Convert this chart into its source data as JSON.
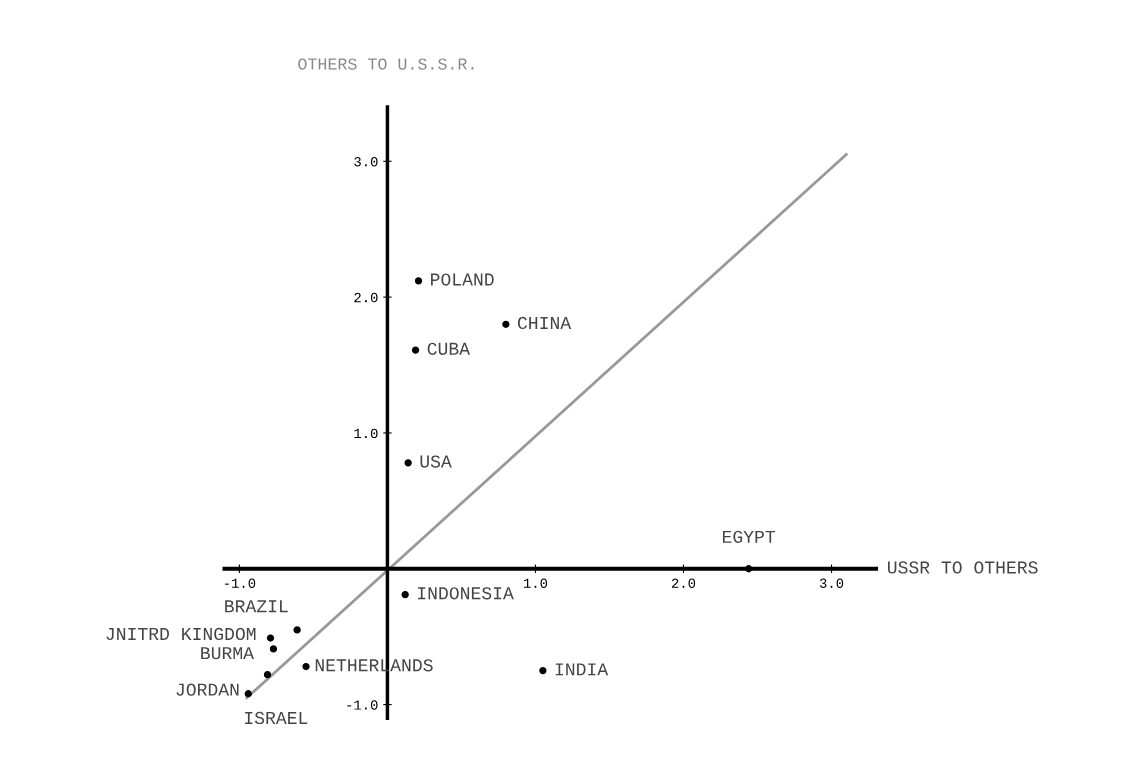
{
  "chart_data": {
    "type": "scatter",
    "xlabel": "USSR TO OTHERS",
    "ylabel": "OTHERS TO U.S.S.R.",
    "xlim": [
      -1.1,
      3.3
    ],
    "ylim": [
      -1.1,
      3.4
    ],
    "xticks": [
      {
        "value": -1.0,
        "label": "-1.0"
      },
      {
        "value": 1.0,
        "label": "1.0"
      },
      {
        "value": 2.0,
        "label": "2.0"
      },
      {
        "value": 3.0,
        "label": "3.0"
      }
    ],
    "yticks": [
      {
        "value": -1.0,
        "label": "-1.0"
      },
      {
        "value": 1.0,
        "label": "1.0"
      },
      {
        "value": 2.0,
        "label": "2.0"
      },
      {
        "value": 3.0,
        "label": "3.0"
      }
    ],
    "grid": false,
    "legend": false,
    "series": [
      {
        "marker": "circle",
        "color": "#000000",
        "x": [
          0.21,
          0.8,
          0.19,
          0.14,
          2.44,
          0.12,
          -0.61,
          -0.79,
          -0.77,
          -0.81,
          -0.94,
          -0.55,
          1.05
        ],
        "values": [
          2.12,
          1.8,
          1.61,
          0.78,
          0.0,
          -0.19,
          -0.45,
          -0.51,
          -0.59,
          -0.78,
          -0.92,
          -0.72,
          -0.75
        ]
      },
      {
        "type": "line",
        "color": "#999999",
        "x": [
          -0.95,
          3.1
        ],
        "values": [
          -0.95,
          3.05
        ]
      }
    ],
    "annotations": [
      {
        "text": "POLAND",
        "x": 0.21,
        "y": 2.12
      },
      {
        "text": "CHINA",
        "x": 0.8,
        "y": 1.8
      },
      {
        "text": "CUBA",
        "x": 0.19,
        "y": 1.61
      },
      {
        "text": "USA",
        "x": 0.14,
        "y": 0.78
      },
      {
        "text": "EGYPT",
        "x": 2.44,
        "y": 0.0
      },
      {
        "text": "INDONESIA",
        "x": 0.12,
        "y": -0.19
      },
      {
        "text": "BRAZIL",
        "x": -0.61,
        "y": -0.45
      },
      {
        "text": "JNITRD KINGDOM",
        "x": -0.79,
        "y": -0.51
      },
      {
        "text": "BURMA",
        "x": -0.77,
        "y": -0.59
      },
      {
        "text": "ISRAEL",
        "x": -0.81,
        "y": -0.78
      },
      {
        "text": "JORDAN",
        "x": -0.94,
        "y": -0.92
      },
      {
        "text": "NETHERLANDS",
        "x": -0.55,
        "y": -0.72
      },
      {
        "text": "INDIA",
        "x": 1.05,
        "y": -0.75
      }
    ]
  }
}
